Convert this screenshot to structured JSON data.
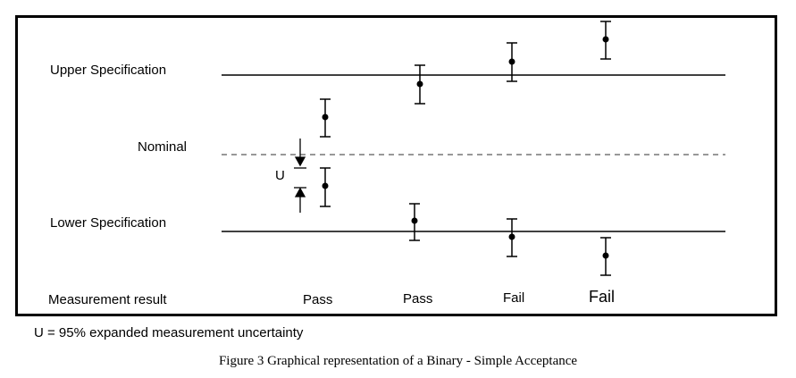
{
  "labels": {
    "upper": "Upper Specification",
    "nominal": "Nominal",
    "lower": "Lower Specification",
    "uncertainty": "U",
    "measurement": "Measurement result"
  },
  "results": [
    "Pass",
    "Pass",
    "Fail",
    "Fail"
  ],
  "legend": "U = 95% expanded measurement uncertainty",
  "caption": "Figure 3 Graphical representation of a Binary - Simple Acceptance"
}
